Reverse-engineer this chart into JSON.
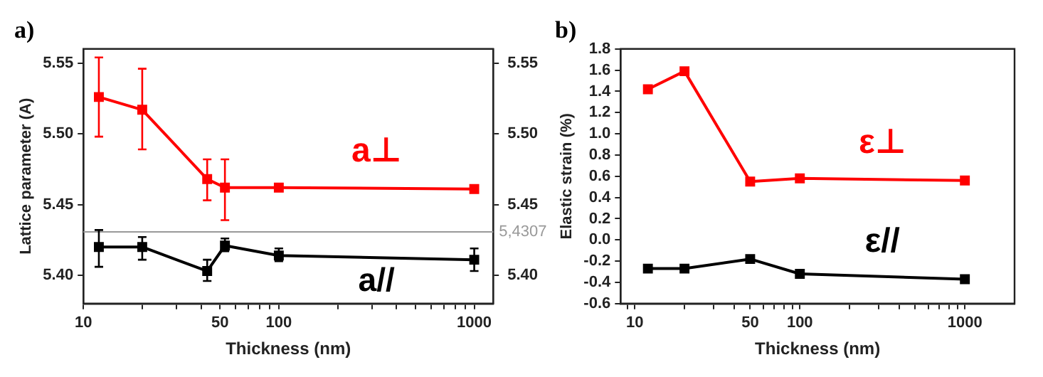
{
  "chart_data": [
    {
      "type": "line",
      "title": "a)",
      "xlabel": "Thickness (nm)",
      "ylabel": "Lattice parameter (A)",
      "log": "x",
      "marker": "square",
      "line_style": "solid",
      "x": [
        12,
        20,
        43,
        53,
        100,
        1000
      ],
      "xlim": [
        10,
        1250
      ],
      "xticks": [
        10,
        {
          "value": 20,
          "label": null
        },
        {
          "value": 30,
          "label": null
        },
        {
          "value": 40,
          "label": null
        },
        50,
        {
          "value": 60,
          "label": null
        },
        {
          "value": 70,
          "label": null
        },
        {
          "value": 80,
          "label": null
        },
        {
          "value": 90,
          "label": null
        },
        100,
        {
          "value": 200,
          "label": null
        },
        {
          "value": 300,
          "label": null
        },
        {
          "value": 400,
          "label": null
        },
        {
          "value": 500,
          "label": null
        },
        {
          "value": 600,
          "label": null
        },
        {
          "value": 700,
          "label": null
        },
        {
          "value": 800,
          "label": null
        },
        {
          "value": 900,
          "label": null
        },
        1000
      ],
      "ylim": [
        5.38,
        5.56
      ],
      "yticks": [
        {
          "value": 5.4,
          "label": "5.40"
        },
        5.45,
        {
          "value": 5.5,
          "label": "5.50"
        },
        5.55
      ],
      "y2lim": [
        5.38,
        5.56
      ],
      "y2ticks": [
        {
          "value": 5.4,
          "label": "5.40"
        },
        5.45,
        {
          "value": 5.5,
          "label": "5.50"
        },
        5.55
      ],
      "ref_lines": [
        {
          "axis": "y",
          "value": 5.4307,
          "label": "5,4307",
          "color": "#999999"
        }
      ],
      "series": [
        {
          "name": "a⊥",
          "color": "#ff0000",
          "values": [
            5.526,
            5.517,
            5.468,
            5.462,
            5.462,
            5.461
          ],
          "errors": [
            [
              5.498,
              5.554
            ],
            [
              5.489,
              5.546
            ],
            [
              5.453,
              5.482
            ],
            [
              5.439,
              5.482
            ],
            null,
            null
          ]
        },
        {
          "name": "a//",
          "color": "#000000",
          "values": [
            5.42,
            5.42,
            5.403,
            5.421,
            5.414,
            5.411
          ],
          "errors": [
            [
              5.406,
              5.432
            ],
            [
              5.411,
              5.427
            ],
            [
              5.396,
              5.411
            ],
            [
              5.417,
              5.426
            ],
            [
              5.41,
              5.419
            ],
            [
              5.403,
              5.419
            ]
          ]
        }
      ]
    },
    {
      "type": "line",
      "title": "b)",
      "xlabel": "Thickness (nm)",
      "ylabel": "Elastic strain (%)",
      "log": "x",
      "marker": "square",
      "line_style": "solid",
      "x": [
        12,
        20,
        50,
        100,
        1000
      ],
      "xlim": [
        8.2,
        2000
      ],
      "xticks": [
        {
          "value": 9,
          "label": null
        },
        10,
        {
          "value": 20,
          "label": null
        },
        {
          "value": 30,
          "label": null
        },
        {
          "value": 40,
          "label": null
        },
        50,
        {
          "value": 60,
          "label": null
        },
        {
          "value": 70,
          "label": null
        },
        {
          "value": 80,
          "label": null
        },
        {
          "value": 90,
          "label": null
        },
        100,
        {
          "value": 200,
          "label": null
        },
        {
          "value": 300,
          "label": null
        },
        {
          "value": 400,
          "label": null
        },
        {
          "value": 500,
          "label": null
        },
        {
          "value": 600,
          "label": null
        },
        {
          "value": 700,
          "label": null
        },
        {
          "value": 800,
          "label": null
        },
        {
          "value": 900,
          "label": null
        },
        1000
      ],
      "ylim": [
        -0.6,
        1.8
      ],
      "yticks": [
        -0.6,
        -0.4,
        -0.2,
        {
          "value": 0,
          "label": "0.0"
        },
        0.2,
        0.4,
        0.6,
        0.8,
        {
          "value": 1,
          "label": "1.0"
        },
        1.2,
        1.4,
        1.6,
        1.8
      ],
      "series": [
        {
          "name": "ε⊥",
          "color": "#ff0000",
          "values": [
            1.42,
            1.59,
            0.55,
            0.58,
            0.56
          ]
        },
        {
          "name": "ε//",
          "color": "#000000",
          "values": [
            -0.27,
            -0.27,
            -0.18,
            -0.32,
            -0.37
          ]
        }
      ]
    }
  ]
}
